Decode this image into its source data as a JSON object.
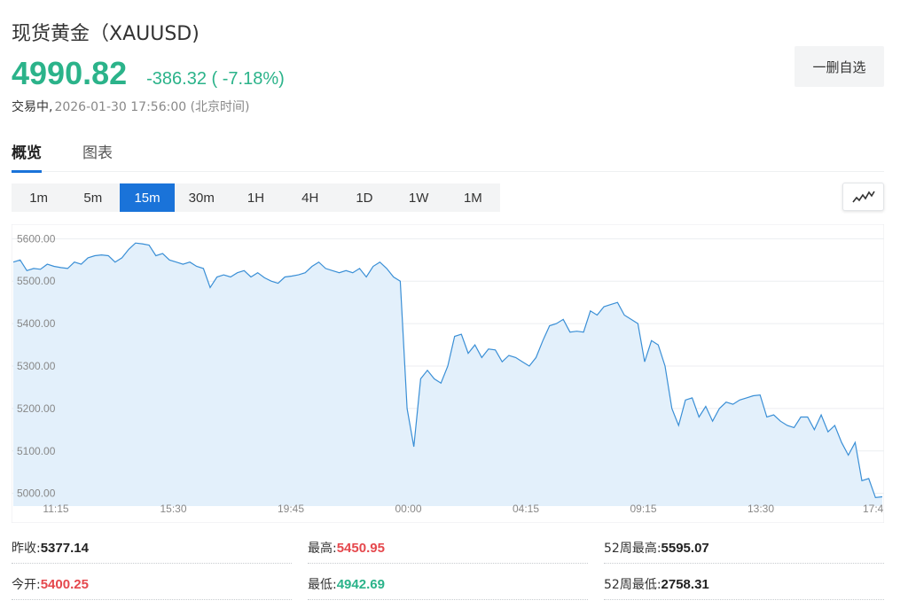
{
  "header": {
    "title": "现货黄金（XAUUSD)",
    "price": "4990.82",
    "change": "-386.32",
    "change_pct": "( -7.18%)",
    "status": "交易中,",
    "timestamp": "2026-01-30 17:56:00 (北京时间)",
    "fav_button": "一删自选"
  },
  "tabs": [
    {
      "label": "概览",
      "active": true
    },
    {
      "label": "图表",
      "active": false
    }
  ],
  "periods": [
    {
      "label": "1m"
    },
    {
      "label": "5m"
    },
    {
      "label": "15m",
      "active": true
    },
    {
      "label": "30m"
    },
    {
      "label": "1H"
    },
    {
      "label": "4H"
    },
    {
      "label": "1D"
    },
    {
      "label": "1W"
    },
    {
      "label": "1M"
    }
  ],
  "chart_type_icon": "line-chart-icon",
  "colors": {
    "up": "#e5484d",
    "down": "#2bb38a",
    "accent": "#1a73d9",
    "line": "#3a8fd6",
    "fill": "#e3f0fb"
  },
  "chart_data": {
    "type": "area",
    "yticks": [
      "5600.00",
      "5500.00",
      "5400.00",
      "5300.00",
      "5200.00",
      "5100.00",
      "5000.00"
    ],
    "ylim": [
      4970,
      5630
    ],
    "xticks": [
      "11:15",
      "15:30",
      "19:45",
      "00:00",
      "04:15",
      "09:15",
      "13:30",
      "17:4"
    ],
    "values": [
      5545,
      5550,
      5525,
      5530,
      5528,
      5540,
      5535,
      5532,
      5530,
      5545,
      5540,
      5555,
      5560,
      5562,
      5560,
      5545,
      5555,
      5575,
      5590,
      5588,
      5585,
      5560,
      5565,
      5550,
      5545,
      5540,
      5545,
      5535,
      5530,
      5485,
      5510,
      5515,
      5510,
      5520,
      5525,
      5510,
      5520,
      5508,
      5500,
      5495,
      5510,
      5512,
      5515,
      5520,
      5535,
      5545,
      5530,
      5525,
      5520,
      5525,
      5520,
      5530,
      5510,
      5535,
      5545,
      5530,
      5510,
      5500,
      5200,
      5110,
      5270,
      5290,
      5270,
      5260,
      5300,
      5370,
      5375,
      5330,
      5350,
      5320,
      5340,
      5338,
      5310,
      5325,
      5320,
      5310,
      5300,
      5320,
      5360,
      5395,
      5400,
      5410,
      5380,
      5382,
      5380,
      5430,
      5420,
      5440,
      5445,
      5450,
      5420,
      5410,
      5400,
      5310,
      5360,
      5350,
      5300,
      5200,
      5160,
      5220,
      5225,
      5180,
      5205,
      5170,
      5200,
      5215,
      5210,
      5220,
      5225,
      5230,
      5232,
      5180,
      5185,
      5170,
      5160,
      5155,
      5180,
      5180,
      5150,
      5185,
      5145,
      5160,
      5120,
      5090,
      5120,
      5030,
      5035,
      4990,
      4992
    ]
  },
  "stats": [
    {
      "label": "昨收:",
      "value": "5377.14",
      "tone": ""
    },
    {
      "label": "最高:",
      "value": "5450.95",
      "tone": "red"
    },
    {
      "label": "52周最高:",
      "value": "5595.07",
      "tone": ""
    },
    {
      "label": "今开:",
      "value": "5400.25",
      "tone": "red"
    },
    {
      "label": "最低:",
      "value": "4942.69",
      "tone": "green"
    },
    {
      "label": "52周最低:",
      "value": "2758.31",
      "tone": ""
    }
  ]
}
